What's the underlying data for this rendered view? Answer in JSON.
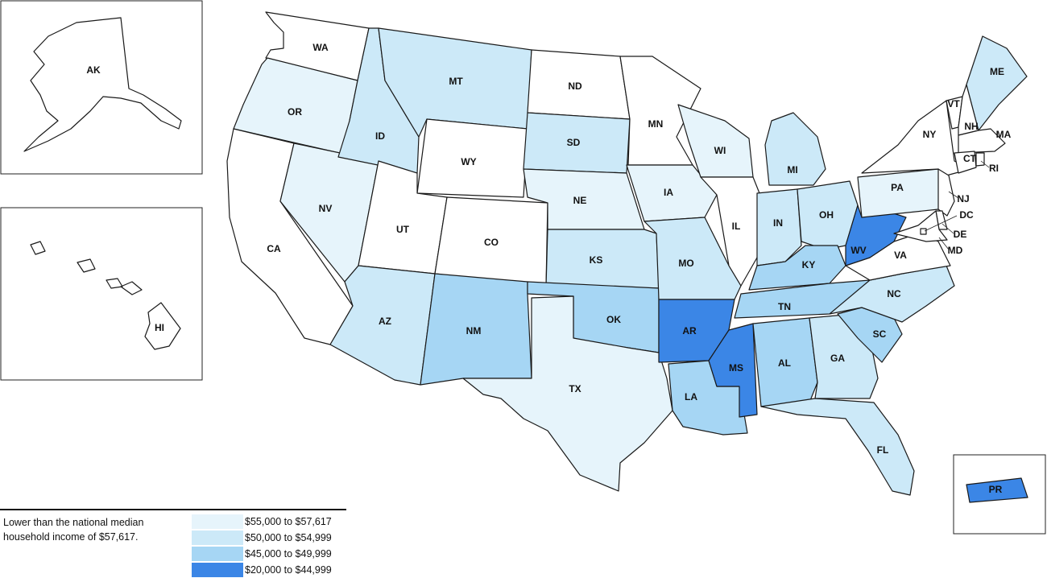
{
  "legend": {
    "note": "Lower than the national median household income of $57,617.",
    "bins": [
      {
        "label": "$55,000 to $57,617",
        "color": "#e6f4fb"
      },
      {
        "label": "$50,000 to $54,999",
        "color": "#cce9f8"
      },
      {
        "label": "$45,000 to $49,999",
        "color": "#a6d6f4"
      },
      {
        "label": "$20,000 to $44,999",
        "color": "#3b86e6"
      }
    ],
    "above_color": "#ffffff"
  },
  "states": [
    {
      "code": "AK",
      "bin": -1
    },
    {
      "code": "HI",
      "bin": -1
    },
    {
      "code": "WA",
      "bin": -1
    },
    {
      "code": "OR",
      "bin": 0
    },
    {
      "code": "CA",
      "bin": -1
    },
    {
      "code": "NV",
      "bin": 0
    },
    {
      "code": "ID",
      "bin": 1
    },
    {
      "code": "MT",
      "bin": 1
    },
    {
      "code": "WY",
      "bin": -1
    },
    {
      "code": "UT",
      "bin": -1
    },
    {
      "code": "CO",
      "bin": -1
    },
    {
      "code": "AZ",
      "bin": 1
    },
    {
      "code": "NM",
      "bin": 2
    },
    {
      "code": "ND",
      "bin": -1
    },
    {
      "code": "SD",
      "bin": 1
    },
    {
      "code": "NE",
      "bin": 0
    },
    {
      "code": "KS",
      "bin": 1
    },
    {
      "code": "OK",
      "bin": 2
    },
    {
      "code": "TX",
      "bin": 0
    },
    {
      "code": "MN",
      "bin": -1
    },
    {
      "code": "IA",
      "bin": 0
    },
    {
      "code": "MO",
      "bin": 1
    },
    {
      "code": "AR",
      "bin": 3
    },
    {
      "code": "LA",
      "bin": 2
    },
    {
      "code": "WI",
      "bin": 0
    },
    {
      "code": "IL",
      "bin": -1
    },
    {
      "code": "MI",
      "bin": 1
    },
    {
      "code": "IN",
      "bin": 1
    },
    {
      "code": "OH",
      "bin": 1
    },
    {
      "code": "KY",
      "bin": 2
    },
    {
      "code": "TN",
      "bin": 2
    },
    {
      "code": "MS",
      "bin": 3
    },
    {
      "code": "AL",
      "bin": 2
    },
    {
      "code": "GA",
      "bin": 1
    },
    {
      "code": "FL",
      "bin": 1
    },
    {
      "code": "SC",
      "bin": 2
    },
    {
      "code": "NC",
      "bin": 1
    },
    {
      "code": "VA",
      "bin": -1
    },
    {
      "code": "WV",
      "bin": 3
    },
    {
      "code": "PA",
      "bin": 0
    },
    {
      "code": "NY",
      "bin": -1
    },
    {
      "code": "VT",
      "bin": -1
    },
    {
      "code": "NH",
      "bin": -1
    },
    {
      "code": "ME",
      "bin": 1
    },
    {
      "code": "MA",
      "bin": -1
    },
    {
      "code": "RI",
      "bin": -1
    },
    {
      "code": "CT",
      "bin": -1
    },
    {
      "code": "NJ",
      "bin": -1
    },
    {
      "code": "DE",
      "bin": -1
    },
    {
      "code": "MD",
      "bin": -1
    },
    {
      "code": "DC",
      "bin": -1
    },
    {
      "code": "PR",
      "bin": 3
    }
  ]
}
